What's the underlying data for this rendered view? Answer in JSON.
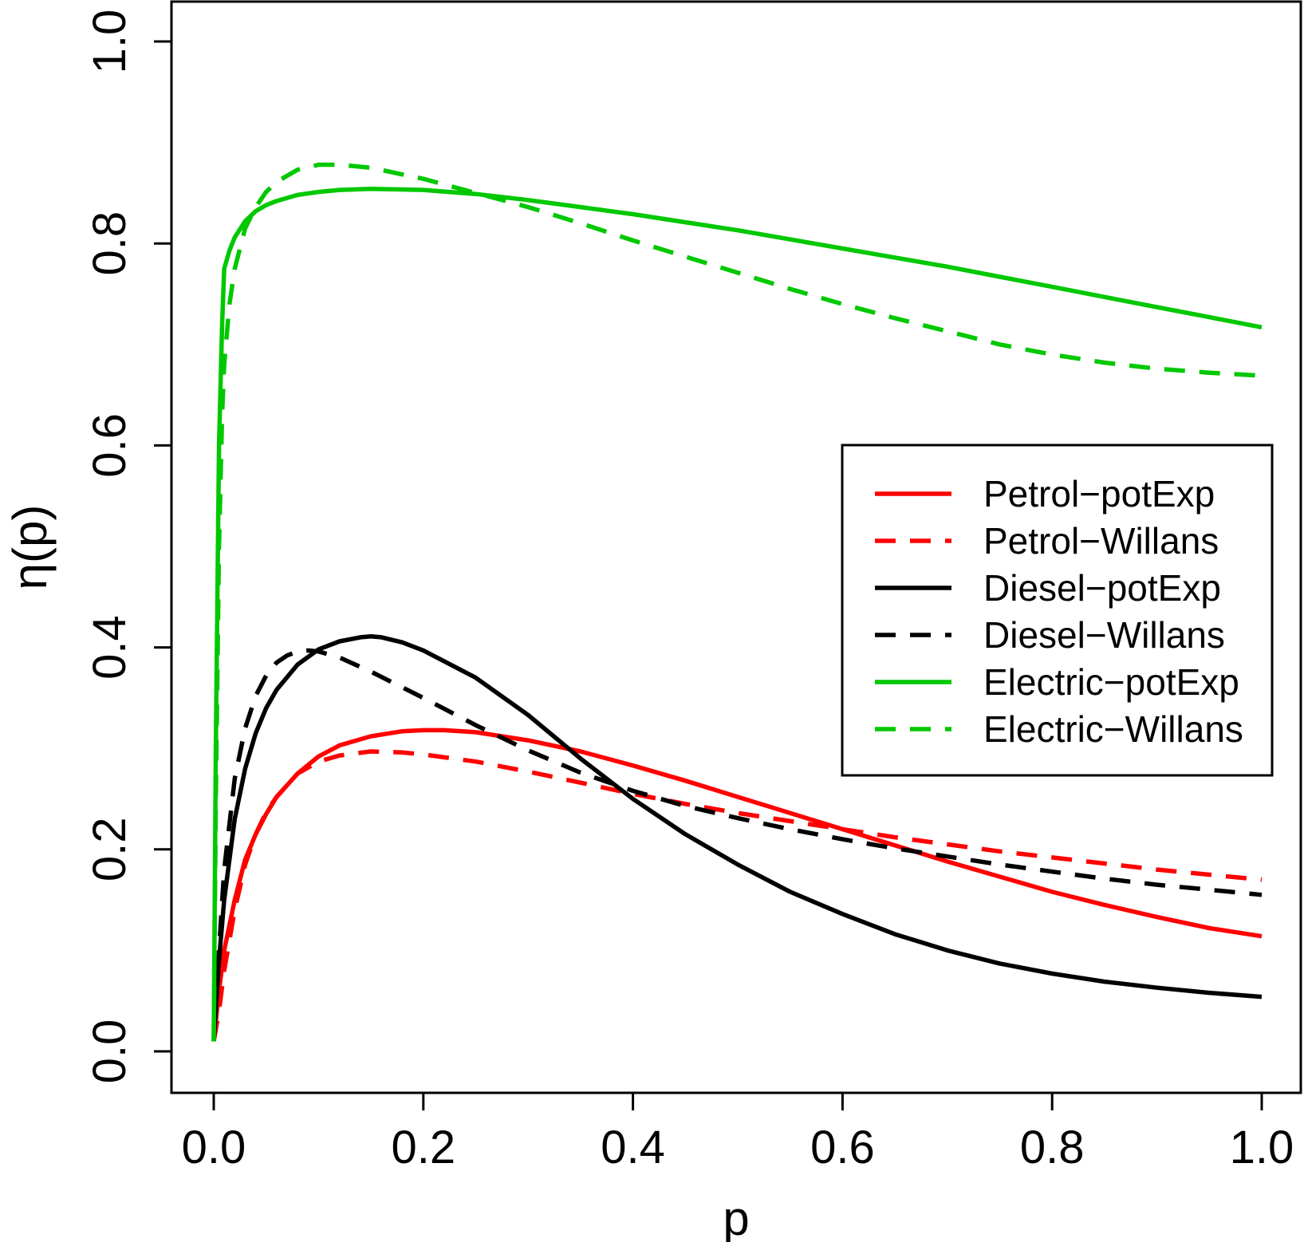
{
  "chart_data": {
    "type": "line",
    "xlabel": "p",
    "ylabel": "η(p)",
    "xlim": [
      0.0,
      1.0
    ],
    "ylim": [
      0.0,
      1.0
    ],
    "x_ticks": [
      "0.0",
      "0.2",
      "0.4",
      "0.6",
      "0.8",
      "1.0"
    ],
    "y_ticks": [
      "0.0",
      "0.2",
      "0.4",
      "0.6",
      "0.8",
      "1.0"
    ],
    "grid": false,
    "legend_position": "right",
    "series": [
      {
        "name": "Petrol−potExp",
        "color": "#ff0000",
        "dash": "solid",
        "x": [
          0.0,
          0.005,
          0.01,
          0.02,
          0.03,
          0.04,
          0.05,
          0.06,
          0.08,
          0.1,
          0.12,
          0.15,
          0.18,
          0.2,
          0.22,
          0.25,
          0.3,
          0.35,
          0.4,
          0.45,
          0.5,
          0.55,
          0.6,
          0.65,
          0.7,
          0.75,
          0.8,
          0.85,
          0.9,
          0.95,
          1.0
        ],
        "y": [
          0.01,
          0.06,
          0.1,
          0.15,
          0.19,
          0.215,
          0.235,
          0.252,
          0.275,
          0.292,
          0.303,
          0.312,
          0.317,
          0.318,
          0.318,
          0.316,
          0.308,
          0.297,
          0.283,
          0.268,
          0.252,
          0.236,
          0.22,
          0.204,
          0.188,
          0.173,
          0.158,
          0.145,
          0.133,
          0.122,
          0.114
        ]
      },
      {
        "name": "Petrol−Willans",
        "color": "#ff0000",
        "dash": "dashed",
        "x": [
          0.0,
          0.005,
          0.01,
          0.02,
          0.03,
          0.04,
          0.05,
          0.06,
          0.08,
          0.1,
          0.12,
          0.15,
          0.18,
          0.2,
          0.25,
          0.3,
          0.35,
          0.4,
          0.45,
          0.5,
          0.55,
          0.6,
          0.65,
          0.7,
          0.75,
          0.8,
          0.85,
          0.9,
          0.95,
          1.0
        ],
        "y": [
          0.01,
          0.04,
          0.08,
          0.14,
          0.185,
          0.215,
          0.237,
          0.252,
          0.275,
          0.287,
          0.293,
          0.297,
          0.296,
          0.294,
          0.287,
          0.277,
          0.266,
          0.255,
          0.245,
          0.236,
          0.228,
          0.22,
          0.212,
          0.205,
          0.198,
          0.192,
          0.186,
          0.18,
          0.175,
          0.17
        ]
      },
      {
        "name": "Diesel−potExp",
        "color": "#000000",
        "dash": "solid",
        "x": [
          0.0,
          0.005,
          0.01,
          0.02,
          0.03,
          0.04,
          0.05,
          0.06,
          0.08,
          0.1,
          0.12,
          0.14,
          0.15,
          0.16,
          0.18,
          0.2,
          0.25,
          0.3,
          0.35,
          0.4,
          0.45,
          0.5,
          0.55,
          0.6,
          0.65,
          0.7,
          0.75,
          0.8,
          0.85,
          0.9,
          0.95,
          1.0
        ],
        "y": [
          0.01,
          0.09,
          0.15,
          0.23,
          0.28,
          0.315,
          0.34,
          0.358,
          0.383,
          0.398,
          0.406,
          0.41,
          0.411,
          0.41,
          0.405,
          0.397,
          0.37,
          0.333,
          0.29,
          0.25,
          0.215,
          0.185,
          0.158,
          0.136,
          0.116,
          0.1,
          0.087,
          0.077,
          0.069,
          0.063,
          0.058,
          0.054
        ]
      },
      {
        "name": "Diesel−Willans",
        "color": "#000000",
        "dash": "dashed",
        "x": [
          0.0,
          0.005,
          0.01,
          0.02,
          0.03,
          0.04,
          0.05,
          0.06,
          0.07,
          0.08,
          0.09,
          0.1,
          0.12,
          0.15,
          0.2,
          0.25,
          0.3,
          0.35,
          0.4,
          0.45,
          0.5,
          0.55,
          0.6,
          0.65,
          0.7,
          0.75,
          0.8,
          0.85,
          0.9,
          0.95,
          1.0
        ],
        "y": [
          0.01,
          0.1,
          0.18,
          0.27,
          0.32,
          0.352,
          0.372,
          0.385,
          0.392,
          0.396,
          0.397,
          0.396,
          0.39,
          0.376,
          0.35,
          0.323,
          0.298,
          0.276,
          0.258,
          0.243,
          0.231,
          0.22,
          0.21,
          0.201,
          0.193,
          0.185,
          0.178,
          0.171,
          0.165,
          0.16,
          0.155
        ]
      },
      {
        "name": "Electric−potExp",
        "color": "#00c800",
        "dash": "solid",
        "x": [
          0.0,
          0.002,
          0.005,
          0.008,
          0.01,
          0.015,
          0.02,
          0.03,
          0.04,
          0.05,
          0.06,
          0.08,
          0.1,
          0.12,
          0.15,
          0.2,
          0.25,
          0.3,
          0.35,
          0.4,
          0.45,
          0.5,
          0.55,
          0.6,
          0.65,
          0.7,
          0.75,
          0.8,
          0.85,
          0.9,
          0.95,
          1.0
        ],
        "y": [
          0.01,
          0.3,
          0.6,
          0.72,
          0.775,
          0.793,
          0.806,
          0.822,
          0.832,
          0.838,
          0.842,
          0.848,
          0.851,
          0.853,
          0.854,
          0.853,
          0.849,
          0.843,
          0.836,
          0.829,
          0.821,
          0.813,
          0.804,
          0.795,
          0.786,
          0.777,
          0.767,
          0.757,
          0.747,
          0.737,
          0.727,
          0.717
        ]
      },
      {
        "name": "Electric−Willans",
        "color": "#00c800",
        "dash": "dashed",
        "x": [
          0.0,
          0.002,
          0.005,
          0.008,
          0.01,
          0.015,
          0.02,
          0.03,
          0.04,
          0.05,
          0.06,
          0.08,
          0.1,
          0.12,
          0.15,
          0.2,
          0.25,
          0.3,
          0.35,
          0.4,
          0.45,
          0.5,
          0.55,
          0.6,
          0.65,
          0.7,
          0.75,
          0.8,
          0.85,
          0.9,
          0.95,
          1.0
        ],
        "y": [
          0.01,
          0.25,
          0.5,
          0.63,
          0.68,
          0.74,
          0.775,
          0.815,
          0.836,
          0.851,
          0.861,
          0.873,
          0.878,
          0.878,
          0.875,
          0.864,
          0.85,
          0.836,
          0.82,
          0.803,
          0.787,
          0.771,
          0.755,
          0.74,
          0.726,
          0.713,
          0.7,
          0.69,
          0.682,
          0.676,
          0.672,
          0.669
        ]
      }
    ]
  }
}
